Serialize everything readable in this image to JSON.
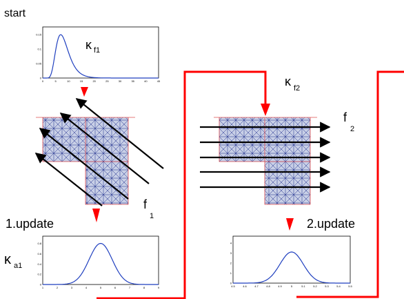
{
  "labels": {
    "start": "start",
    "update1": "1.update",
    "update2": "2.update",
    "kappa_f1": "κ",
    "kappa_f1_sub": "f1",
    "kappa_f2": "κ",
    "kappa_f2_sub": "f2",
    "kappa_a1": "κ",
    "kappa_a1_sub": "a1",
    "f1": "f",
    "f1_sub": "1",
    "f2": "f",
    "f2_sub": "2"
  },
  "colors": {
    "flow_arrow": "#ff0000",
    "force_arrow": "#000000",
    "curve": "#1f3fbf",
    "mesh": "#1a2a8a",
    "mesh_border": "#e05050"
  },
  "plots": {
    "plot_start": {
      "x_ticks": [
        "0",
        "5",
        "10",
        "15",
        "20",
        "25",
        "30",
        "35",
        "40",
        "45"
      ],
      "y_ticks": [
        "0",
        "0.05",
        "0.1",
        "0.15"
      ],
      "shape": "right-skewed peak near x=7"
    },
    "plot_update1": {
      "x_ticks": [
        "1",
        "2",
        "3",
        "4",
        "5",
        "6",
        "7",
        "8",
        "9"
      ],
      "y_ticks": [
        "0",
        "0.2",
        "0.4",
        "0.6",
        "0.8"
      ],
      "shape": "symmetric peak at x=5"
    },
    "plot_update2": {
      "x_ticks": [
        "4.5",
        "4.6",
        "4.7",
        "4.8",
        "4.9",
        "5",
        "5.1",
        "5.2",
        "5.3",
        "5.4",
        "5.5"
      ],
      "y_ticks": [
        "0",
        "1",
        "2",
        "3",
        "4"
      ],
      "shape": "narrow peak at x=5"
    }
  }
}
